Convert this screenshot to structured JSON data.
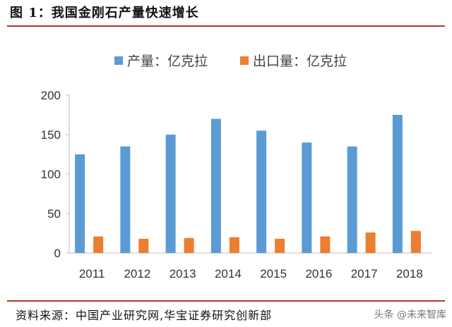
{
  "figure": {
    "title": "图 1：我国金刚石产量快速增长",
    "source": "资料来源：中国产业研究网,华宝证券研究创新部",
    "watermark": "头条 @未来智库"
  },
  "colors": {
    "series_1": "#5b9bd5",
    "series_2": "#ed7d31",
    "rule": "#b3332c"
  },
  "chart_data": {
    "type": "bar",
    "title": "图 1：我国金刚石产量快速增长",
    "xlabel": "",
    "ylabel": "",
    "categories": [
      "2011",
      "2012",
      "2013",
      "2014",
      "2015",
      "2016",
      "2017",
      "2018"
    ],
    "series": [
      {
        "name": "产量：亿克拉",
        "values": [
          125,
          135,
          150,
          170,
          155,
          140,
          135,
          175
        ]
      },
      {
        "name": "出口量：亿克拉",
        "values": [
          21,
          18,
          19,
          20,
          18,
          21,
          26,
          28
        ]
      }
    ],
    "ylim": [
      0,
      200
    ],
    "yticks": [
      0,
      50,
      100,
      150,
      200
    ],
    "grid": false,
    "legend_position": "top"
  }
}
